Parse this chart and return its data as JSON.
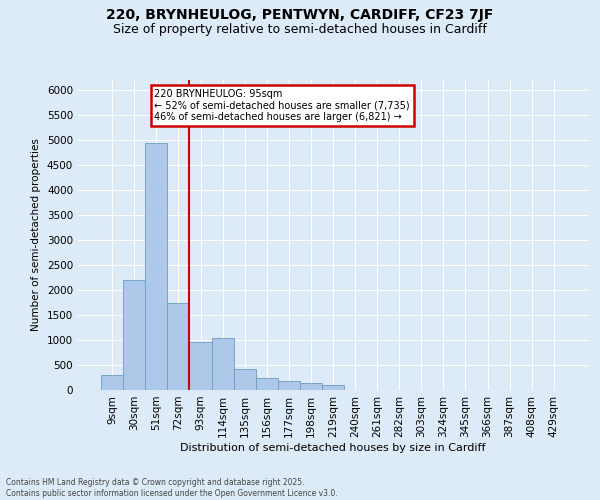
{
  "title1": "220, BRYNHEULOG, PENTWYN, CARDIFF, CF23 7JF",
  "title2": "Size of property relative to semi-detached houses in Cardiff",
  "xlabel": "Distribution of semi-detached houses by size in Cardiff",
  "ylabel": "Number of semi-detached properties",
  "categories": [
    "9sqm",
    "30sqm",
    "51sqm",
    "72sqm",
    "93sqm",
    "114sqm",
    "135sqm",
    "156sqm",
    "177sqm",
    "198sqm",
    "219sqm",
    "240sqm",
    "261sqm",
    "282sqm",
    "303sqm",
    "324sqm",
    "345sqm",
    "366sqm",
    "387sqm",
    "408sqm",
    "429sqm"
  ],
  "values": [
    310,
    2200,
    4950,
    1750,
    970,
    1050,
    420,
    250,
    175,
    135,
    110,
    0,
    0,
    0,
    0,
    0,
    0,
    0,
    0,
    0,
    0
  ],
  "bar_color": "#adc8e8",
  "bar_edge_color": "#6a9ec0",
  "annotation_line1": "220 BRYNHEULOG: 95sqm",
  "annotation_line2": "← 52% of semi-detached houses are smaller (7,735)",
  "annotation_line3": "46% of semi-detached houses are larger (6,821) →",
  "annotation_box_facecolor": "#ffffff",
  "annotation_border_color": "#cc0000",
  "vline_color": "#cc0000",
  "footer_text": "Contains HM Land Registry data © Crown copyright and database right 2025.\nContains public sector information licensed under the Open Government Licence v3.0.",
  "ylim_max": 6200,
  "yticks": [
    0,
    500,
    1000,
    1500,
    2000,
    2500,
    3000,
    3500,
    4000,
    4500,
    5000,
    5500,
    6000
  ],
  "fig_bg_color": "#ddeaf7",
  "plot_bg_color": "#ddeaf7",
  "grid_color": "#ffffff",
  "title_fontsize": 10,
  "subtitle_fontsize": 9,
  "vline_bin_index": 4,
  "bar_width": 1.0
}
